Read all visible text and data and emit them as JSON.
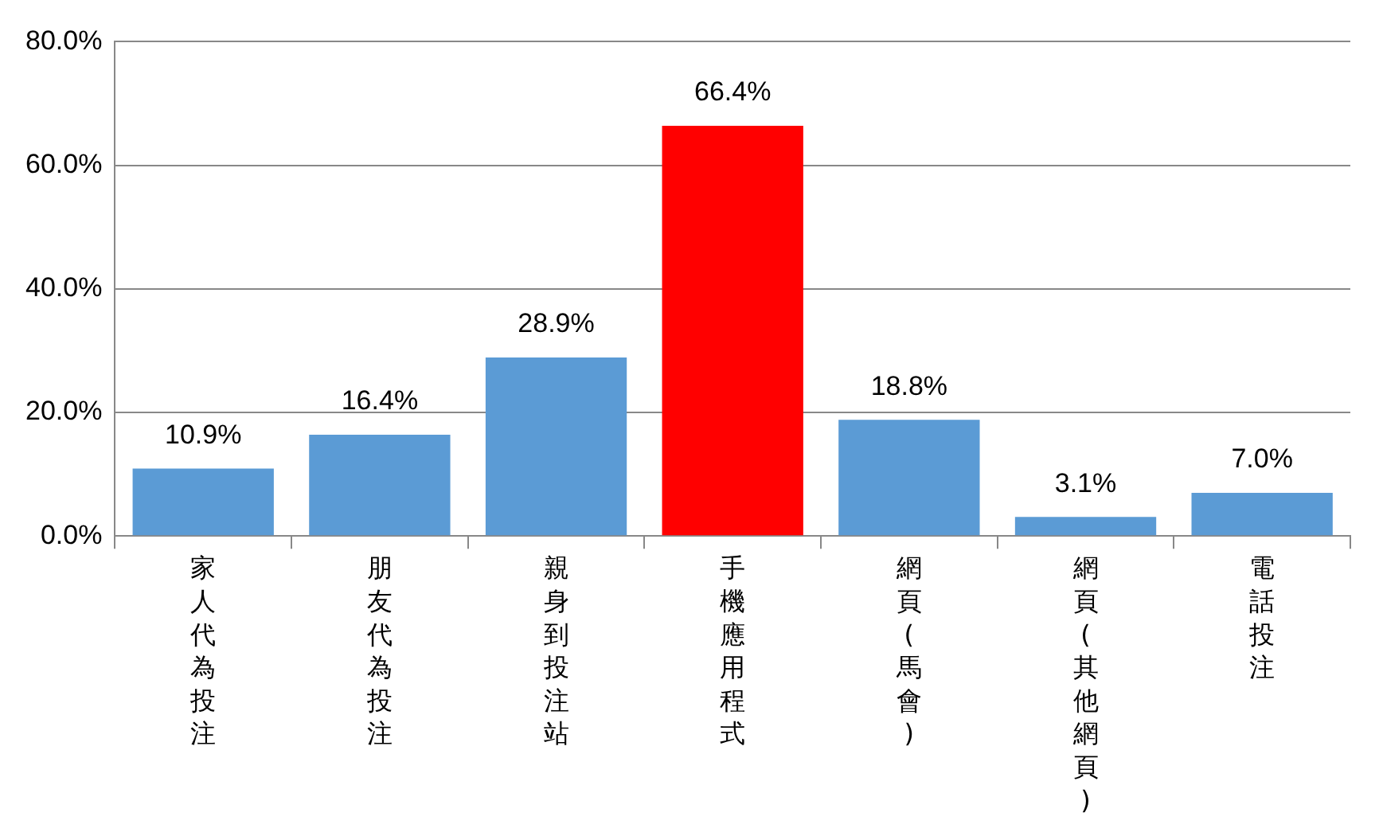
{
  "chart_data": {
    "type": "bar",
    "categories": [
      "家人代為投注",
      "朋友代為投注",
      "親身到投注站",
      "手機應用程式",
      "網頁(馬會)",
      "網頁(其他網頁)",
      "電話投注"
    ],
    "values": [
      10.9,
      16.4,
      28.9,
      66.4,
      18.8,
      3.1,
      7.0
    ],
    "colors": [
      "#5b9bd5",
      "#5b9bd5",
      "#5b9bd5",
      "#ff0000",
      "#5b9bd5",
      "#5b9bd5",
      "#5b9bd5"
    ],
    "value_labels": [
      "10.9%",
      "16.4%",
      "28.9%",
      "66.4%",
      "18.8%",
      "3.1%",
      "7.0%"
    ],
    "ylim": [
      0,
      80
    ],
    "yticks": [
      {
        "value": 0,
        "label": "0.0%"
      },
      {
        "value": 20,
        "label": "20.0%"
      },
      {
        "value": 40,
        "label": "40.0%"
      },
      {
        "value": 60,
        "label": "60.0%"
      },
      {
        "value": 80,
        "label": "80.0%"
      }
    ],
    "grid": "y",
    "legend": false
  }
}
